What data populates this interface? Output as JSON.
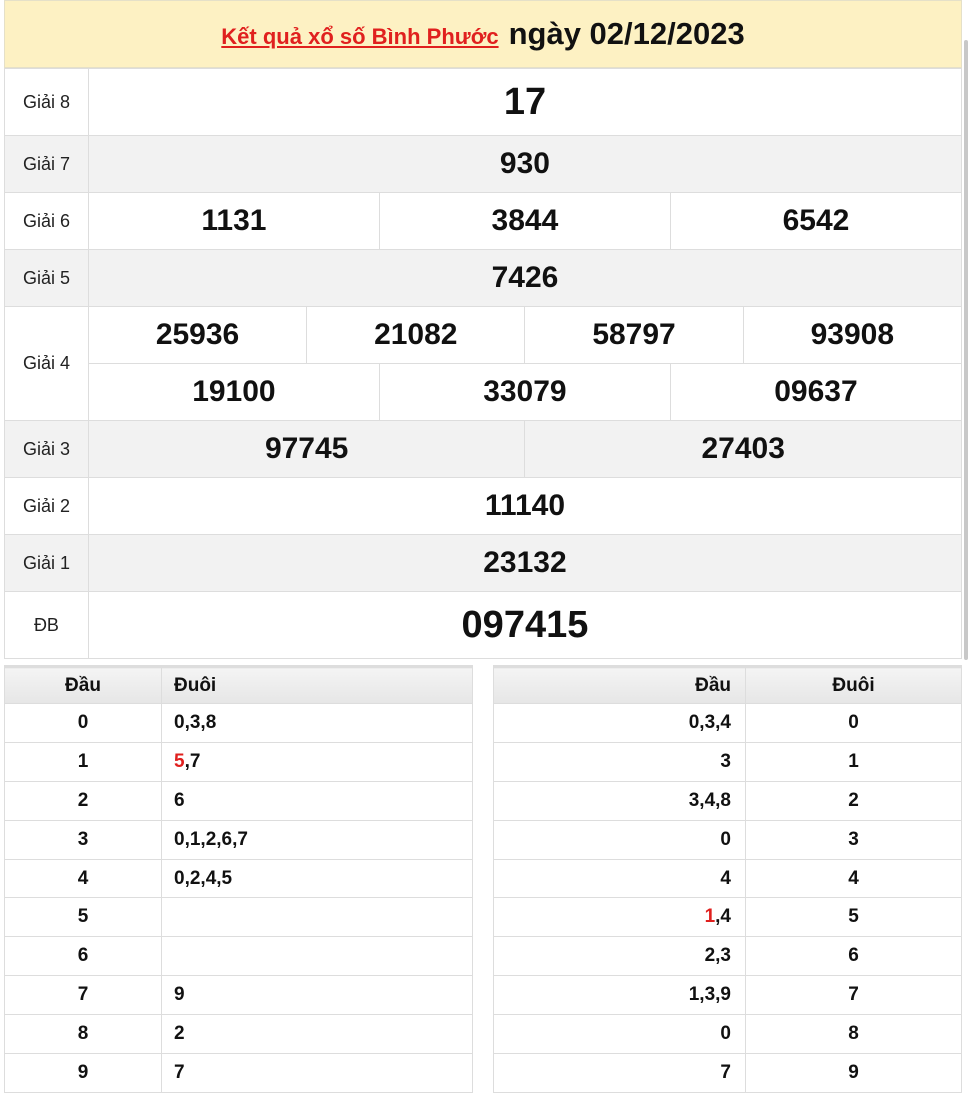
{
  "header": {
    "link_text": "Kết quả xổ số Bình Phước",
    "date_text": "ngày 02/12/2023"
  },
  "prizes": [
    {
      "label": "Giải 8",
      "rows": [
        [
          "17"
        ]
      ],
      "red": true
    },
    {
      "label": "Giải 7",
      "rows": [
        [
          "930"
        ]
      ]
    },
    {
      "label": "Giải 6",
      "rows": [
        [
          "1131",
          "3844",
          "6542"
        ]
      ]
    },
    {
      "label": "Giải 5",
      "rows": [
        [
          "7426"
        ]
      ]
    },
    {
      "label": "Giải 4",
      "rows": [
        [
          "25936",
          "21082",
          "58797",
          "93908"
        ],
        [
          "19100",
          "33079",
          "09637"
        ]
      ]
    },
    {
      "label": "Giải 3",
      "rows": [
        [
          "97745",
          "27403"
        ]
      ]
    },
    {
      "label": "Giải 2",
      "rows": [
        [
          "11140"
        ]
      ]
    },
    {
      "label": "Giải 1",
      "rows": [
        [
          "23132"
        ]
      ]
    },
    {
      "label": "ĐB",
      "rows": [
        [
          "097415"
        ]
      ],
      "red": true
    }
  ],
  "loto_head": {
    "headers": [
      "Đầu",
      "Đuôi"
    ],
    "rows": [
      {
        "key": "0",
        "parts": [
          {
            "t": "0,3,8"
          }
        ]
      },
      {
        "key": "1",
        "parts": [
          {
            "t": "5",
            "red": true
          },
          {
            "t": ",7"
          }
        ]
      },
      {
        "key": "2",
        "parts": [
          {
            "t": "6"
          }
        ]
      },
      {
        "key": "3",
        "parts": [
          {
            "t": "0,1,2,6,7"
          }
        ]
      },
      {
        "key": "4",
        "parts": [
          {
            "t": "0,2,4,5"
          }
        ]
      },
      {
        "key": "5",
        "parts": []
      },
      {
        "key": "6",
        "parts": []
      },
      {
        "key": "7",
        "parts": [
          {
            "t": "9"
          }
        ]
      },
      {
        "key": "8",
        "parts": [
          {
            "t": "2"
          }
        ]
      },
      {
        "key": "9",
        "parts": [
          {
            "t": "7"
          }
        ]
      }
    ]
  },
  "loto_tail": {
    "headers": [
      "Đầu",
      "Đuôi"
    ],
    "rows": [
      {
        "key": "0",
        "parts": [
          {
            "t": "0,3,4"
          }
        ]
      },
      {
        "key": "1",
        "parts": [
          {
            "t": "3"
          }
        ]
      },
      {
        "key": "2",
        "parts": [
          {
            "t": "3,4,8"
          }
        ]
      },
      {
        "key": "3",
        "parts": [
          {
            "t": "0"
          }
        ]
      },
      {
        "key": "4",
        "parts": [
          {
            "t": "4"
          }
        ]
      },
      {
        "key": "5",
        "parts": [
          {
            "t": "1",
            "red": true
          },
          {
            "t": ",4"
          }
        ]
      },
      {
        "key": "6",
        "parts": [
          {
            "t": "2,3"
          }
        ]
      },
      {
        "key": "7",
        "parts": [
          {
            "t": "1,3,9"
          }
        ]
      },
      {
        "key": "8",
        "parts": [
          {
            "t": "0"
          }
        ]
      },
      {
        "key": "9",
        "parts": [
          {
            "t": "7"
          }
        ]
      }
    ]
  },
  "colors": {
    "accent_red": "#e0201e",
    "header_bg": "#fdf1c3"
  }
}
